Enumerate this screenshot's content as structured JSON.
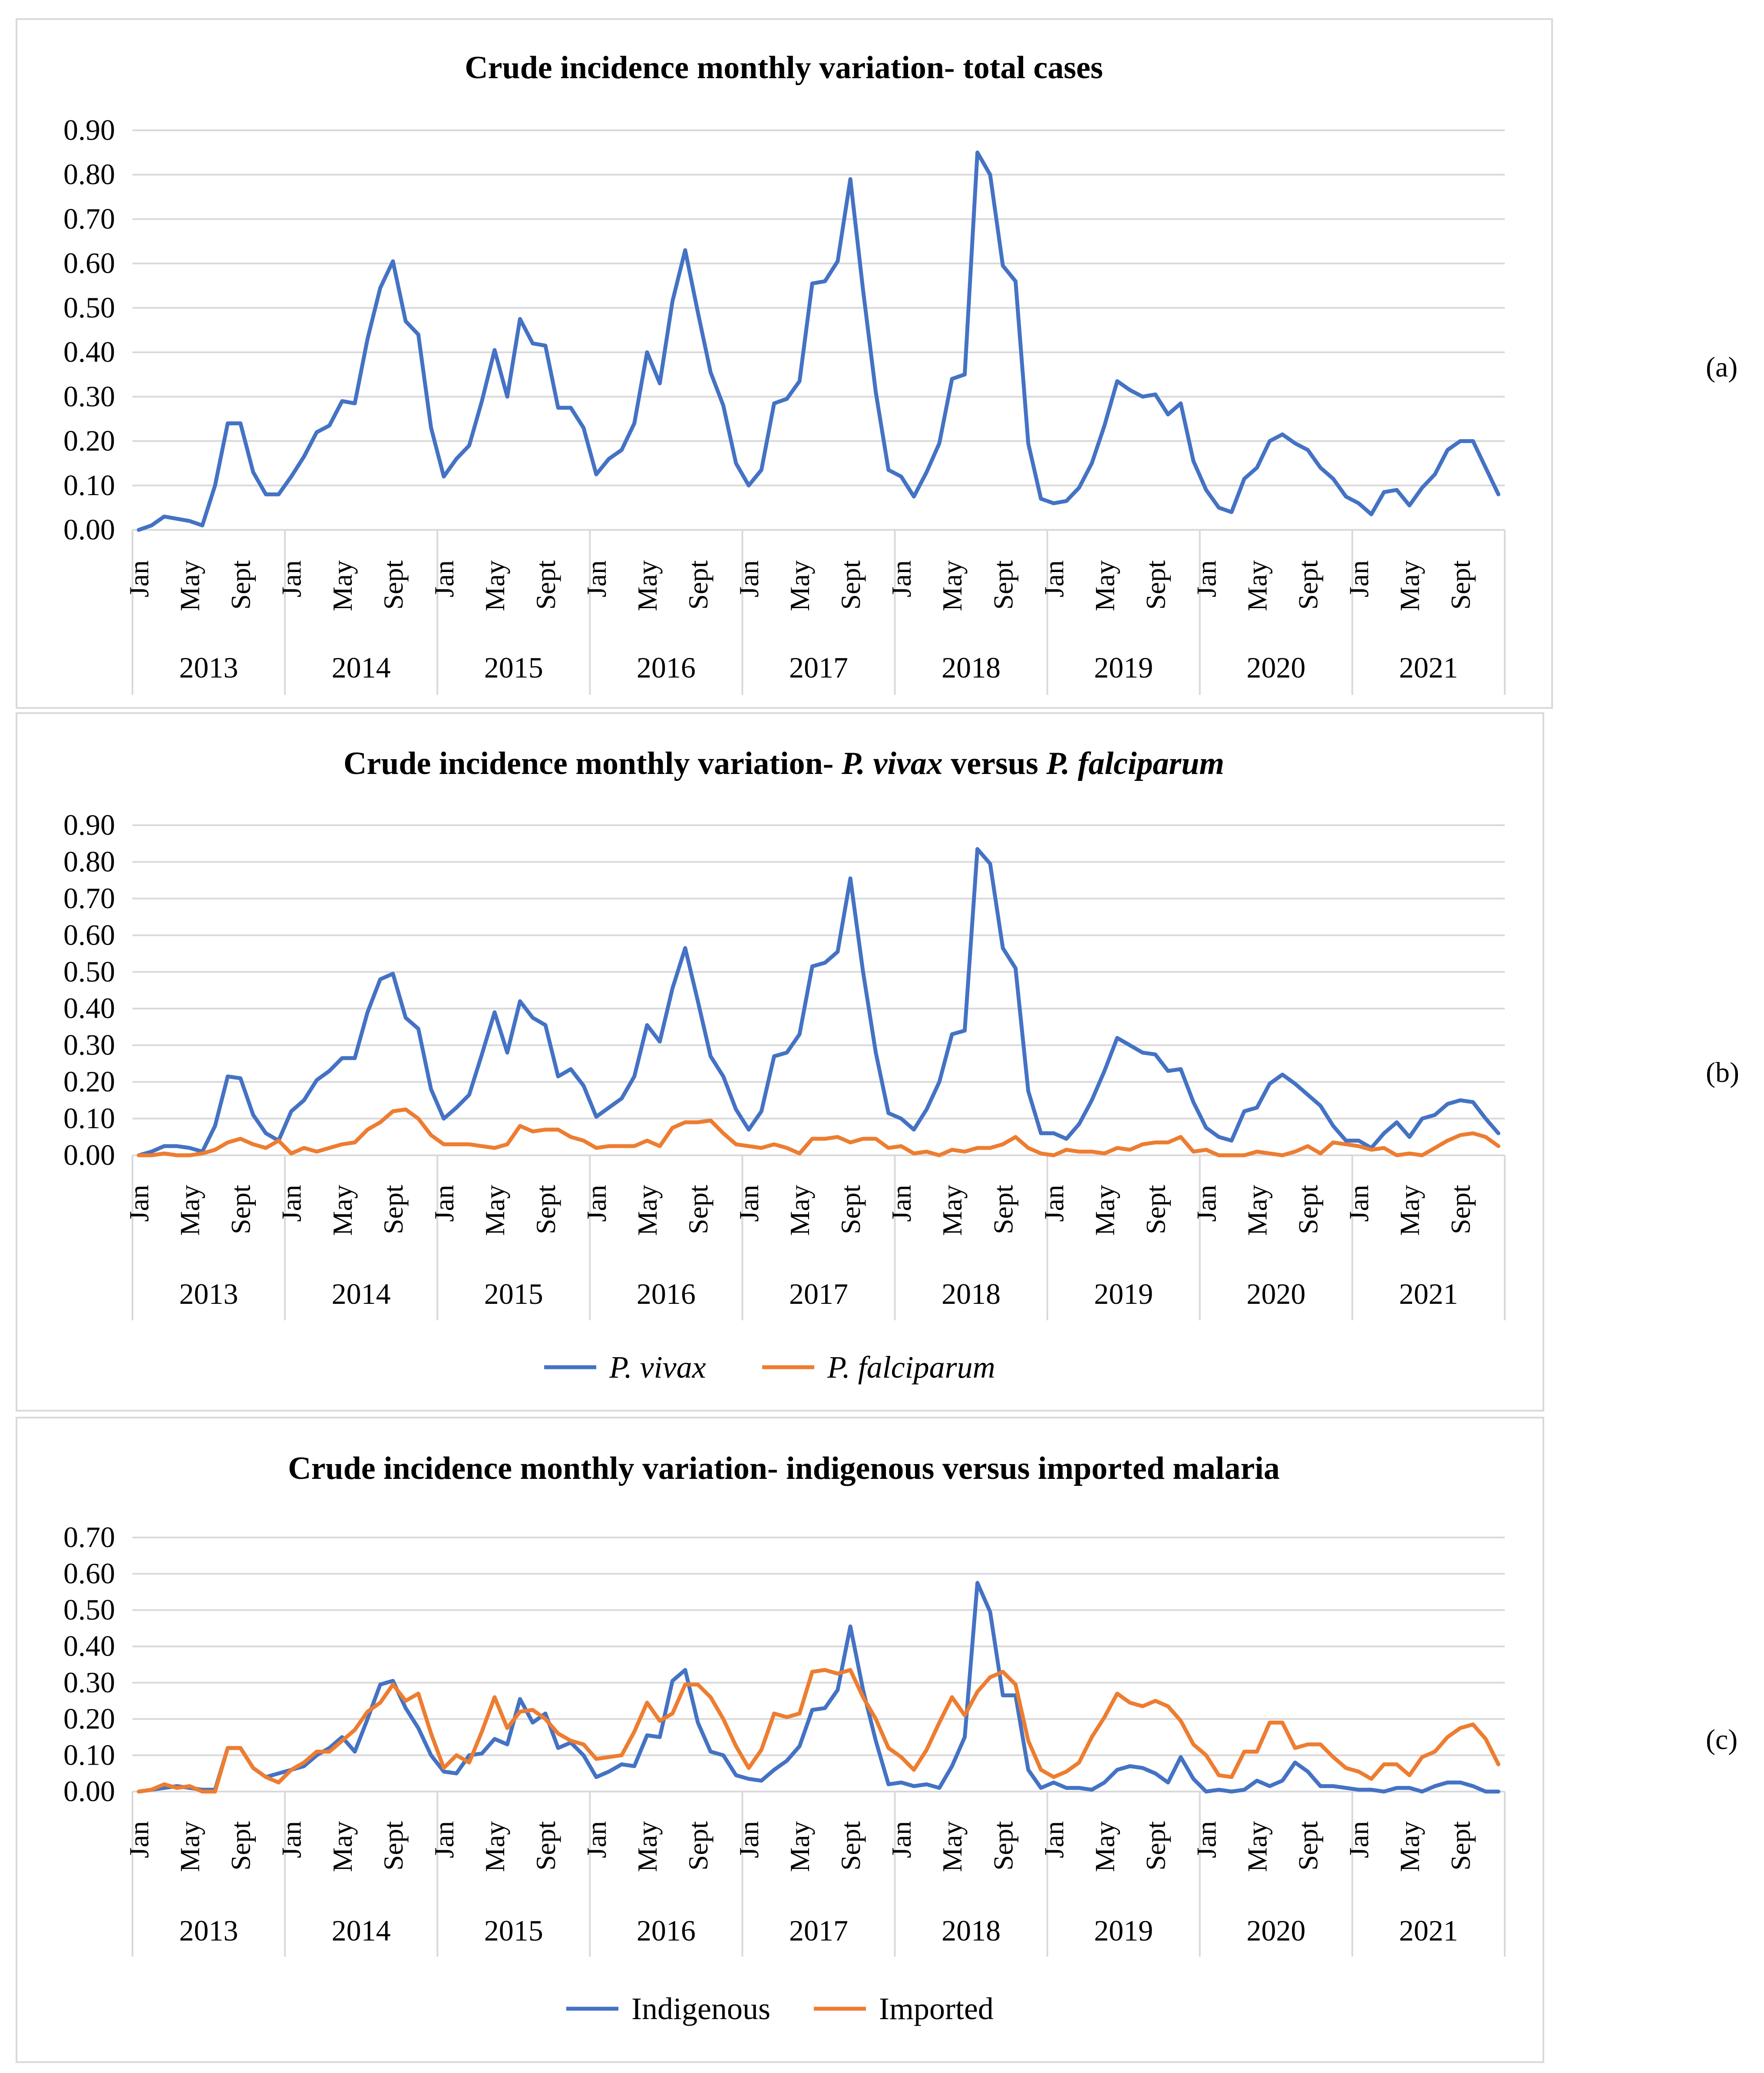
{
  "panel_labels": [
    "(a)",
    "(b)",
    "(c)"
  ],
  "chart_data": [
    {
      "type": "line",
      "title": "Crude incidence monthly variation- total cases",
      "title_parts": [
        {
          "text": "Crude incidence monthly variation- total cases",
          "italic": false
        }
      ],
      "month_tick_labels": [
        "Jan",
        "May",
        "Sept"
      ],
      "years": [
        "2013",
        "2014",
        "2015",
        "2016",
        "2017",
        "2018",
        "2019",
        "2020",
        "2021"
      ],
      "ylim": [
        0,
        0.9
      ],
      "yticks": [
        "0.00",
        "0.10",
        "0.20",
        "0.30",
        "0.40",
        "0.50",
        "0.60",
        "0.70",
        "0.80",
        "0.90"
      ],
      "grid": true,
      "legend": [],
      "series": [
        {
          "name": "Total cases",
          "color": "#4472C4",
          "values": [
            0.0,
            0.01,
            0.03,
            0.025,
            0.02,
            0.01,
            0.1,
            0.24,
            0.24,
            0.13,
            0.08,
            0.08,
            0.12,
            0.165,
            0.22,
            0.235,
            0.29,
            0.285,
            0.43,
            0.545,
            0.605,
            0.47,
            0.44,
            0.23,
            0.12,
            0.16,
            0.19,
            0.29,
            0.405,
            0.3,
            0.475,
            0.42,
            0.415,
            0.275,
            0.275,
            0.23,
            0.125,
            0.16,
            0.18,
            0.24,
            0.4,
            0.33,
            0.515,
            0.63,
            0.49,
            0.355,
            0.28,
            0.15,
            0.1,
            0.135,
            0.285,
            0.295,
            0.335,
            0.555,
            0.56,
            0.605,
            0.79,
            0.54,
            0.31,
            0.135,
            0.12,
            0.075,
            0.13,
            0.195,
            0.34,
            0.35,
            0.85,
            0.8,
            0.595,
            0.56,
            0.195,
            0.07,
            0.06,
            0.065,
            0.095,
            0.15,
            0.235,
            0.335,
            0.315,
            0.3,
            0.305,
            0.26,
            0.285,
            0.155,
            0.09,
            0.05,
            0.04,
            0.115,
            0.14,
            0.2,
            0.215,
            0.195,
            0.18,
            0.14,
            0.115,
            0.075,
            0.06,
            0.035,
            0.085,
            0.09,
            0.055,
            0.095,
            0.125,
            0.18,
            0.2,
            0.2,
            0.14,
            0.08
          ]
        }
      ]
    },
    {
      "type": "line",
      "title": "Crude incidence monthly variation- P. vivax versus P. falciparum",
      "title_parts": [
        {
          "text": "Crude incidence monthly variation- ",
          "italic": false
        },
        {
          "text": "P. vivax",
          "italic": true
        },
        {
          "text": " versus ",
          "italic": false
        },
        {
          "text": "P. falciparum",
          "italic": true
        }
      ],
      "month_tick_labels": [
        "Jan",
        "May",
        "Sept"
      ],
      "years": [
        "2013",
        "2014",
        "2015",
        "2016",
        "2017",
        "2018",
        "2019",
        "2020",
        "2021"
      ],
      "ylim": [
        0,
        0.9
      ],
      "yticks": [
        "0.00",
        "0.10",
        "0.20",
        "0.30",
        "0.40",
        "0.50",
        "0.60",
        "0.70",
        "0.80",
        "0.90"
      ],
      "grid": true,
      "legend": [
        {
          "label": "P. vivax",
          "italic": true,
          "color": "#4472C4"
        },
        {
          "label": "P. falciparum",
          "italic": true,
          "color": "#ED7D31"
        }
      ],
      "series": [
        {
          "name": "P. vivax",
          "color": "#4472C4",
          "values": [
            0.0,
            0.01,
            0.025,
            0.025,
            0.02,
            0.01,
            0.08,
            0.215,
            0.21,
            0.11,
            0.06,
            0.04,
            0.12,
            0.15,
            0.205,
            0.23,
            0.265,
            0.265,
            0.39,
            0.48,
            0.495,
            0.375,
            0.345,
            0.18,
            0.1,
            0.13,
            0.165,
            0.275,
            0.39,
            0.28,
            0.42,
            0.375,
            0.355,
            0.215,
            0.235,
            0.19,
            0.105,
            0.13,
            0.155,
            0.215,
            0.355,
            0.31,
            0.455,
            0.565,
            0.42,
            0.27,
            0.215,
            0.125,
            0.07,
            0.12,
            0.27,
            0.28,
            0.33,
            0.515,
            0.525,
            0.555,
            0.755,
            0.5,
            0.28,
            0.115,
            0.1,
            0.07,
            0.125,
            0.2,
            0.33,
            0.34,
            0.835,
            0.795,
            0.565,
            0.51,
            0.175,
            0.06,
            0.06,
            0.045,
            0.085,
            0.15,
            0.23,
            0.32,
            0.3,
            0.28,
            0.275,
            0.23,
            0.235,
            0.145,
            0.075,
            0.05,
            0.04,
            0.12,
            0.13,
            0.195,
            0.22,
            0.195,
            0.165,
            0.135,
            0.08,
            0.04,
            0.04,
            0.02,
            0.06,
            0.09,
            0.05,
            0.1,
            0.11,
            0.14,
            0.15,
            0.145,
            0.1,
            0.06
          ]
        },
        {
          "name": "P. falciparum",
          "color": "#ED7D31",
          "values": [
            0.0,
            0.0,
            0.005,
            0.0,
            0.0,
            0.005,
            0.015,
            0.035,
            0.045,
            0.03,
            0.02,
            0.04,
            0.005,
            0.02,
            0.01,
            0.02,
            0.03,
            0.035,
            0.07,
            0.09,
            0.12,
            0.125,
            0.1,
            0.055,
            0.03,
            0.03,
            0.03,
            0.025,
            0.02,
            0.03,
            0.08,
            0.065,
            0.07,
            0.07,
            0.05,
            0.04,
            0.02,
            0.025,
            0.025,
            0.025,
            0.04,
            0.025,
            0.075,
            0.09,
            0.09,
            0.095,
            0.06,
            0.03,
            0.025,
            0.02,
            0.03,
            0.02,
            0.005,
            0.045,
            0.045,
            0.05,
            0.035,
            0.045,
            0.045,
            0.02,
            0.025,
            0.005,
            0.01,
            0.0,
            0.015,
            0.01,
            0.02,
            0.02,
            0.03,
            0.05,
            0.02,
            0.005,
            0.0,
            0.015,
            0.01,
            0.01,
            0.005,
            0.02,
            0.015,
            0.03,
            0.035,
            0.035,
            0.05,
            0.01,
            0.015,
            0.0,
            0.0,
            0.0,
            0.01,
            0.005,
            0.0,
            0.01,
            0.025,
            0.005,
            0.035,
            0.03,
            0.025,
            0.015,
            0.02,
            0.0,
            0.005,
            0.0,
            0.02,
            0.04,
            0.055,
            0.06,
            0.05,
            0.025
          ]
        }
      ]
    },
    {
      "type": "line",
      "title": "Crude incidence monthly variation- indigenous versus imported malaria",
      "title_parts": [
        {
          "text": "Crude incidence monthly variation- indigenous versus imported malaria",
          "italic": false
        }
      ],
      "month_tick_labels": [
        "Jan",
        "May",
        "Sept"
      ],
      "years": [
        "2013",
        "2014",
        "2015",
        "2016",
        "2017",
        "2018",
        "2019",
        "2020",
        "2021"
      ],
      "ylim": [
        0,
        0.7
      ],
      "yticks": [
        "0.00",
        "0.10",
        "0.20",
        "0.30",
        "0.40",
        "0.50",
        "0.60",
        "0.70"
      ],
      "grid": true,
      "legend": [
        {
          "label": "Indigenous",
          "italic": false,
          "color": "#4472C4"
        },
        {
          "label": "Imported",
          "italic": false,
          "color": "#ED7D31"
        }
      ],
      "series": [
        {
          "name": "Indigenous",
          "color": "#4472C4",
          "values": [
            0.0,
            0.005,
            0.01,
            0.015,
            0.01,
            0.005,
            0.005,
            0.12,
            0.12,
            0.065,
            0.04,
            0.05,
            0.06,
            0.07,
            0.1,
            0.12,
            0.15,
            0.11,
            0.2,
            0.295,
            0.305,
            0.23,
            0.175,
            0.1,
            0.055,
            0.05,
            0.1,
            0.105,
            0.145,
            0.13,
            0.255,
            0.19,
            0.215,
            0.12,
            0.135,
            0.1,
            0.04,
            0.055,
            0.075,
            0.07,
            0.155,
            0.15,
            0.305,
            0.335,
            0.19,
            0.11,
            0.1,
            0.045,
            0.035,
            0.03,
            0.06,
            0.085,
            0.125,
            0.225,
            0.23,
            0.28,
            0.455,
            0.28,
            0.14,
            0.02,
            0.025,
            0.015,
            0.02,
            0.01,
            0.07,
            0.15,
            0.575,
            0.495,
            0.265,
            0.265,
            0.06,
            0.01,
            0.025,
            0.01,
            0.01,
            0.005,
            0.025,
            0.06,
            0.07,
            0.065,
            0.05,
            0.025,
            0.095,
            0.035,
            0.0,
            0.005,
            0.0,
            0.005,
            0.03,
            0.015,
            0.03,
            0.08,
            0.055,
            0.015,
            0.015,
            0.01,
            0.005,
            0.005,
            0.0,
            0.01,
            0.01,
            0.0,
            0.015,
            0.025,
            0.025,
            0.015,
            0.0,
            0.0
          ]
        },
        {
          "name": "Imported",
          "color": "#ED7D31",
          "values": [
            0.0,
            0.005,
            0.02,
            0.01,
            0.015,
            0.0,
            0.0,
            0.12,
            0.12,
            0.065,
            0.04,
            0.025,
            0.06,
            0.08,
            0.11,
            0.11,
            0.14,
            0.17,
            0.22,
            0.245,
            0.295,
            0.25,
            0.27,
            0.16,
            0.065,
            0.1,
            0.08,
            0.165,
            0.26,
            0.175,
            0.22,
            0.225,
            0.2,
            0.16,
            0.14,
            0.13,
            0.09,
            0.095,
            0.1,
            0.165,
            0.245,
            0.195,
            0.215,
            0.295,
            0.295,
            0.26,
            0.2,
            0.125,
            0.065,
            0.115,
            0.215,
            0.205,
            0.215,
            0.33,
            0.335,
            0.325,
            0.335,
            0.26,
            0.2,
            0.12,
            0.095,
            0.06,
            0.115,
            0.19,
            0.26,
            0.21,
            0.275,
            0.315,
            0.33,
            0.295,
            0.14,
            0.06,
            0.04,
            0.055,
            0.08,
            0.15,
            0.205,
            0.27,
            0.245,
            0.235,
            0.25,
            0.235,
            0.195,
            0.13,
            0.1,
            0.045,
            0.04,
            0.11,
            0.11,
            0.19,
            0.19,
            0.12,
            0.13,
            0.13,
            0.095,
            0.065,
            0.055,
            0.035,
            0.075,
            0.075,
            0.045,
            0.095,
            0.11,
            0.15,
            0.175,
            0.185,
            0.145,
            0.075
          ]
        }
      ]
    }
  ]
}
